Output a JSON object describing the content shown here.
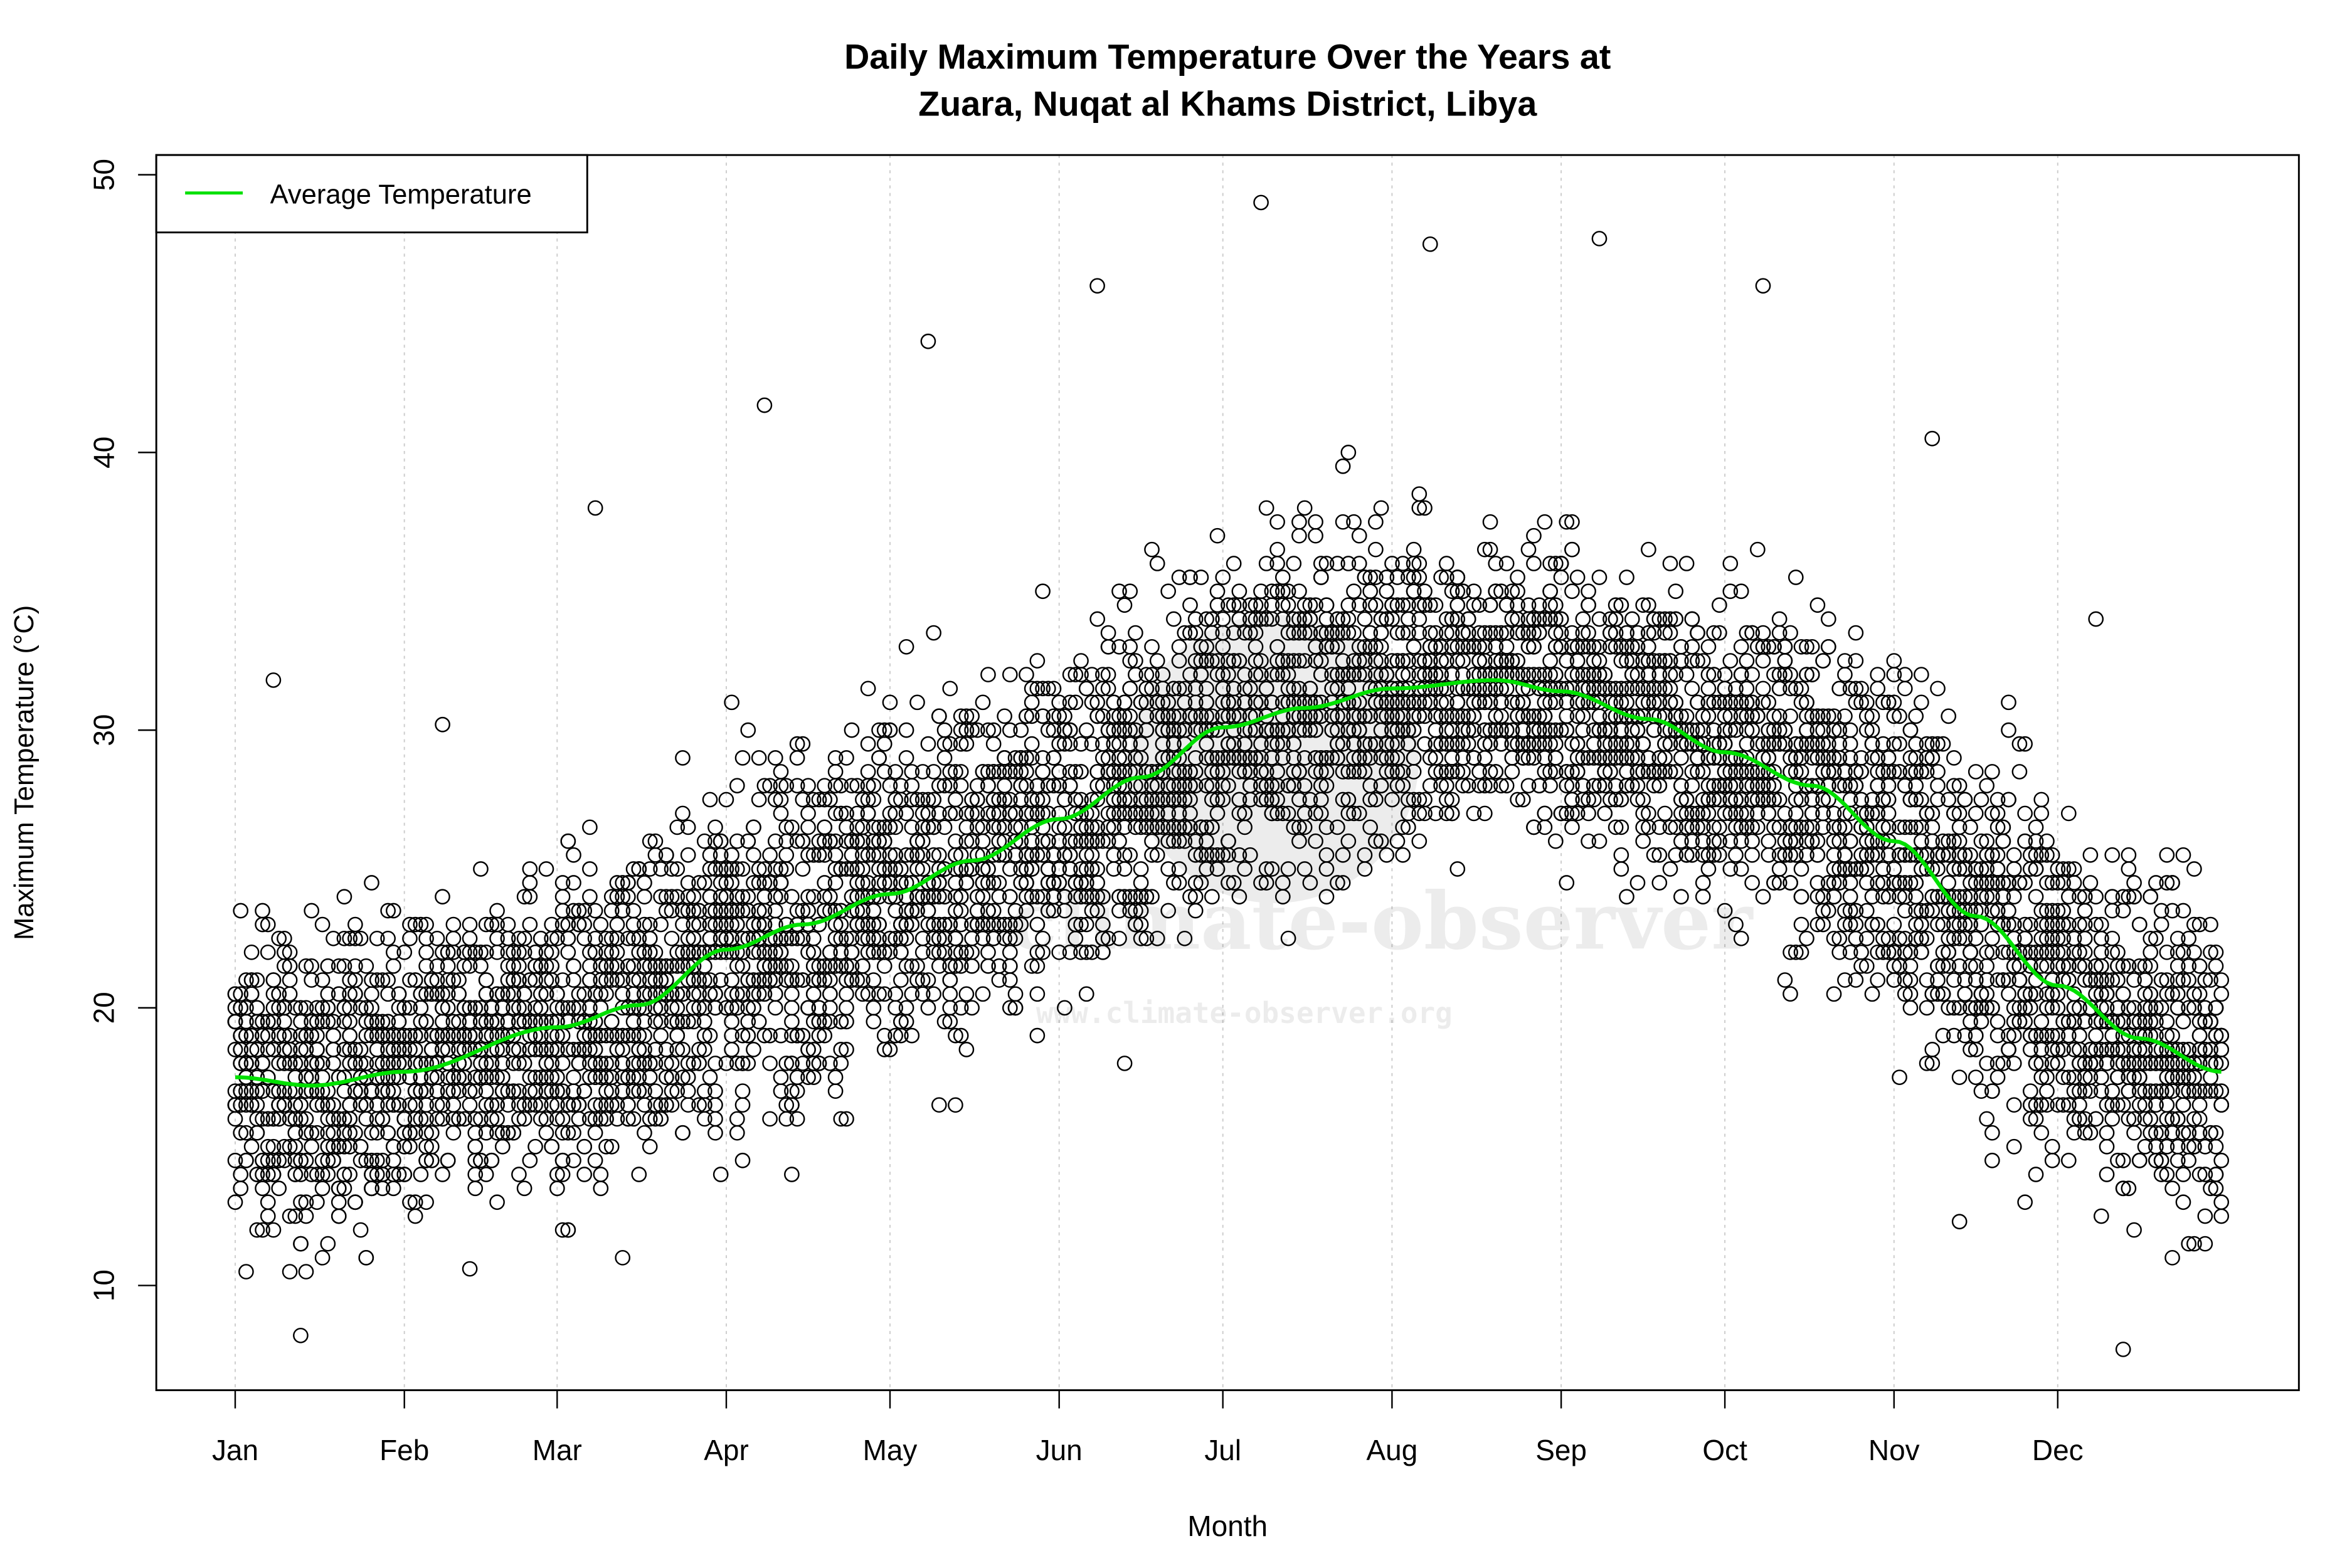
{
  "chart_data": {
    "type": "scatter",
    "title": "Daily Maximum Temperature Over the Years at",
    "subtitle": "Zuara, Nuqat al Khams District, Libya",
    "xlabel": "Month",
    "ylabel": "Maximum Temperature (°C)",
    "x_ticks": [
      "Jan",
      "Feb",
      "Mar",
      "Apr",
      "May",
      "Jun",
      "Jul",
      "Aug",
      "Sep",
      "Oct",
      "Nov",
      "Dec"
    ],
    "x_tick_days": [
      1,
      32,
      60,
      91,
      121,
      152,
      182,
      213,
      244,
      274,
      305,
      335
    ],
    "xlim": [
      1,
      365
    ],
    "y_ticks": [
      10,
      20,
      30,
      40,
      50
    ],
    "ylim": [
      6.5,
      50.6
    ],
    "grid": "vertical dotted at month ticks",
    "legend": {
      "position": "top-left",
      "entries": [
        {
          "name": "Average Temperature",
          "color": "#00e000"
        }
      ]
    },
    "watermark": {
      "text": "climate-observer",
      "url": "www.climate-observer.org"
    },
    "series": [
      {
        "name": "Average Temperature",
        "kind": "line",
        "color": "#00e000",
        "day": [
          1,
          15,
          32,
          60,
          75,
          91,
          105,
          121,
          136,
          152,
          167,
          182,
          197,
          213,
          232,
          244,
          260,
          274,
          290,
          305,
          320,
          335,
          350,
          365
        ],
        "value": [
          17.5,
          17.2,
          17.7,
          19.3,
          20.1,
          22.1,
          23.0,
          24.1,
          25.3,
          26.8,
          28.3,
          30.1,
          30.8,
          31.5,
          31.8,
          31.4,
          30.4,
          29.2,
          28.0,
          26.0,
          23.3,
          20.8,
          18.9,
          17.7
        ]
      },
      {
        "name": "Daily maximum observations",
        "kind": "points",
        "marker": "open circle",
        "color": "#000000",
        "monthly_min": [
          8.2,
          10.6,
          11.0,
          14.0,
          16.5,
          18.0,
          22.5,
          25.0,
          24.0,
          20.5,
          12.3,
          7.7
        ],
        "monthly_max": [
          31.8,
          30.2,
          38.0,
          41.7,
          44.0,
          46.0,
          49.0,
          47.5,
          47.7,
          46.0,
          40.5,
          34.0
        ]
      }
    ]
  }
}
